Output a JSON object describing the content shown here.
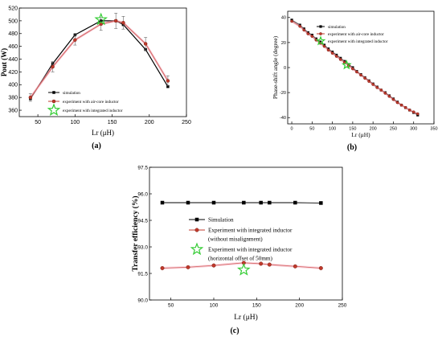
{
  "chart_data": [
    {
      "type": "line",
      "panel_label": "(a)",
      "title": "",
      "xlabel": "Lr (μH)",
      "ylabel": "Pout (W)",
      "xlim": [
        25,
        250
      ],
      "ylim": [
        350,
        520
      ],
      "xticks": [
        50,
        100,
        150,
        200,
        250
      ],
      "yticks": [
        360,
        380,
        400,
        420,
        440,
        460,
        480,
        500,
        520
      ],
      "legend_position": "bottom-left",
      "series": [
        {
          "name": "simulation",
          "color": "#000000",
          "marker": "square",
          "x": [
            40,
            70,
            100,
            135,
            155,
            165,
            195,
            225
          ],
          "y": [
            378,
            433,
            478,
            500,
            500,
            494,
            455,
            397
          ]
        },
        {
          "name": "experiment with air-core inductor",
          "color": "#c0392b",
          "marker": "circle",
          "x": [
            40,
            70,
            100,
            135,
            155,
            165,
            195,
            225
          ],
          "y": [
            380,
            428,
            470,
            495,
            500,
            497,
            464,
            406
          ],
          "err": [
            6,
            8,
            8,
            10,
            12,
            10,
            10,
            8
          ]
        },
        {
          "name": "experiment with integrated inductor",
          "color": "#33cc33",
          "marker": "star",
          "x": [
            135
          ],
          "y": [
            502
          ]
        }
      ]
    },
    {
      "type": "line",
      "panel_label": "(b)",
      "title": "",
      "xlabel": "Lr (μH)",
      "ylabel": "Phase-shift angle (degree)",
      "xlim": [
        -10,
        350
      ],
      "ylim": [
        -45,
        45
      ],
      "xticks": [
        0,
        50,
        100,
        150,
        200,
        250,
        300,
        350
      ],
      "yticks": [
        -40,
        -20,
        0,
        20,
        40
      ],
      "legend_position": "top-right",
      "series": [
        {
          "name": "simulation",
          "color": "#000000",
          "marker": "square",
          "x": [
            0,
            20,
            30,
            40,
            50,
            60,
            70,
            80,
            90,
            100,
            110,
            120,
            130,
            140,
            150,
            160,
            170,
            180,
            190,
            200,
            210,
            220,
            230,
            240,
            250,
            260,
            270,
            280,
            290,
            300,
            310
          ],
          "y": [
            38,
            34,
            31,
            28,
            26,
            23,
            20.5,
            18,
            15,
            12.5,
            10,
            7.5,
            5,
            2.5,
            0,
            -3,
            -5.5,
            -8,
            -10.5,
            -13,
            -15.5,
            -18,
            -20,
            -22.5,
            -25,
            -27.5,
            -30,
            -32,
            -34,
            -36,
            -38
          ]
        },
        {
          "name": "experiment with air-core inductor",
          "color": "#c0392b",
          "marker": "circle",
          "x": [
            0,
            20,
            30,
            40,
            50,
            60,
            70,
            80,
            90,
            100,
            110,
            120,
            130,
            140,
            150,
            160,
            170,
            180,
            190,
            200,
            210,
            220,
            230,
            240,
            250,
            260,
            270,
            280,
            290,
            300,
            310
          ],
          "y": [
            37,
            33,
            30,
            27,
            25,
            22,
            19.5,
            17,
            14,
            11.5,
            9,
            6.5,
            4,
            1.5,
            -1,
            -3.5,
            -6,
            -8.5,
            -11,
            -13.5,
            -16,
            -18,
            -20.5,
            -23,
            -25.5,
            -28,
            -30,
            -32,
            -34,
            -35.5,
            -37
          ]
        },
        {
          "name": "experiment with integrated inductor",
          "color": "#33cc33",
          "marker": "star",
          "x": [
            135
          ],
          "y": [
            2
          ]
        }
      ]
    },
    {
      "type": "line",
      "panel_label": "(c)",
      "title": "",
      "xlabel": "Lr (μH)",
      "ylabel": "Transfer efficiency (%)",
      "xlim": [
        25,
        250
      ],
      "ylim": [
        90.0,
        97.5
      ],
      "xticks": [
        50,
        100,
        150,
        200,
        250
      ],
      "yticks": [
        90.0,
        91.5,
        93.0,
        94.5,
        96.0,
        97.5
      ],
      "ytick_labels": [
        "90.0",
        "91.5",
        "93.0",
        "94.5",
        "96.0",
        "97.5"
      ],
      "legend_position": "center-left",
      "series": [
        {
          "name": "Simulation",
          "color": "#000000",
          "marker": "square",
          "x": [
            40,
            70,
            100,
            135,
            155,
            165,
            195,
            225
          ],
          "y": [
            95.5,
            95.5,
            95.5,
            95.5,
            95.5,
            95.5,
            95.5,
            95.48
          ]
        },
        {
          "name": "Experiment with integrated inductor",
          "name_line2": "(without misalignment)",
          "color": "#c0392b",
          "marker": "circle",
          "x": [
            40,
            70,
            100,
            135,
            155,
            165,
            195,
            225
          ],
          "y": [
            91.8,
            91.85,
            91.95,
            92.1,
            92.05,
            92.0,
            91.9,
            91.8
          ]
        },
        {
          "name": "Experiment with integrated inductor",
          "name_line2": "(horizontal offset of 50mm)",
          "color": "#33cc33",
          "marker": "star",
          "x": [
            135
          ],
          "y": [
            91.7
          ]
        }
      ]
    }
  ]
}
